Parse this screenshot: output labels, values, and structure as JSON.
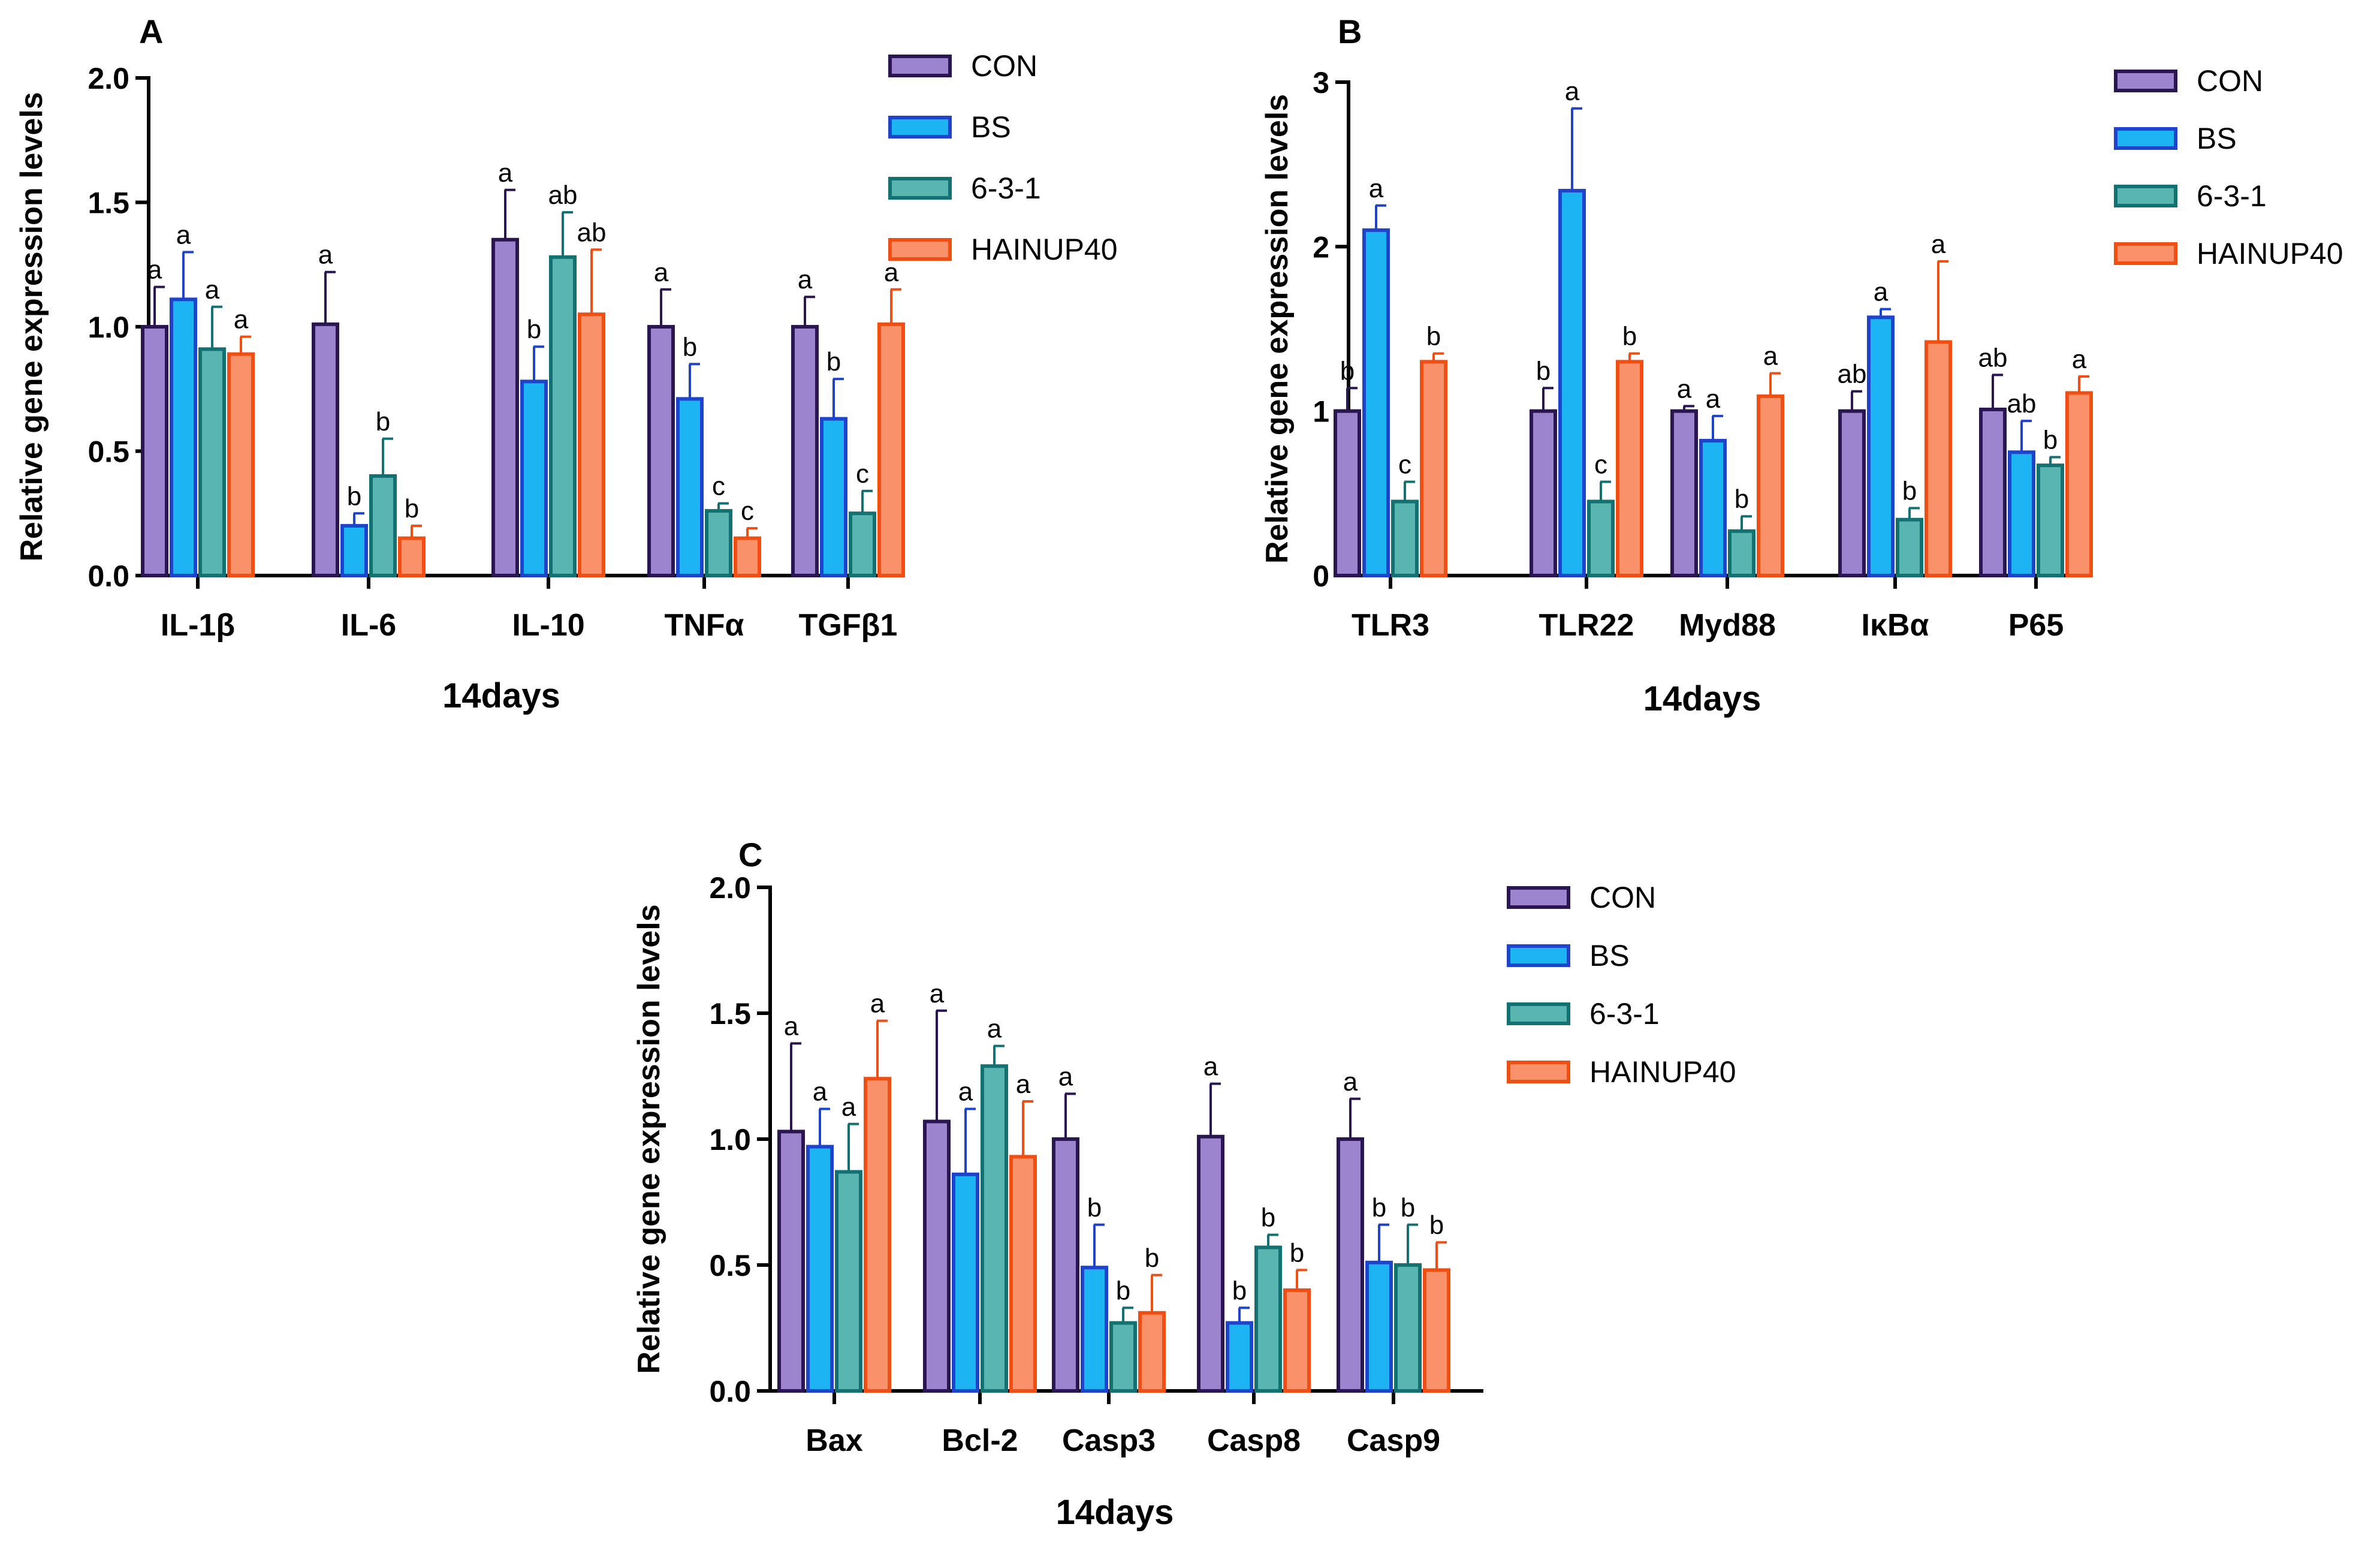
{
  "series_styles": [
    {
      "name": "CON",
      "fill": "#9C84CE",
      "stroke": "#2A1650"
    },
    {
      "name": "BS",
      "fill": "#1CB4F2",
      "stroke": "#1F44CC"
    },
    {
      "name": "6-3-1",
      "fill": "#58B5B0",
      "stroke": "#137171"
    },
    {
      "name": "HAINUP40",
      "fill": "#F9926A",
      "stroke": "#F04F14"
    }
  ],
  "chart_data": [
    {
      "type": "bar",
      "panel": "A",
      "xlabel": "14days",
      "ylabel": "Relative gene expression levels",
      "ylim": [
        0,
        2.0
      ],
      "yticks": [
        "0.0",
        "0.5",
        "1.0",
        "1.5",
        "2.0"
      ],
      "categories": [
        "IL-1β",
        "IL-6",
        "IL-10",
        "TNFα",
        "TGFβ1"
      ],
      "series": [
        {
          "name": "CON",
          "values": [
            1.0,
            1.01,
            1.35,
            1.0,
            1.0
          ],
          "errors": [
            0.16,
            0.21,
            0.2,
            0.15,
            0.12
          ],
          "letters": [
            "a",
            "a",
            "a",
            "a",
            "a"
          ]
        },
        {
          "name": "BS",
          "values": [
            1.11,
            0.2,
            0.78,
            0.71,
            0.63
          ],
          "errors": [
            0.19,
            0.05,
            0.14,
            0.14,
            0.16
          ],
          "letters": [
            "a",
            "b",
            "b",
            "b",
            "b"
          ]
        },
        {
          "name": "6-3-1",
          "values": [
            0.91,
            0.4,
            1.28,
            0.26,
            0.25
          ],
          "errors": [
            0.17,
            0.15,
            0.18,
            0.03,
            0.09
          ],
          "letters": [
            "a",
            "b",
            "ab",
            "c",
            "c"
          ]
        },
        {
          "name": "HAINUP40",
          "values": [
            0.89,
            0.15,
            1.05,
            0.15,
            1.01
          ],
          "errors": [
            0.07,
            0.05,
            0.26,
            0.04,
            0.14
          ],
          "letters": [
            "a",
            "b",
            "ab",
            "c",
            "a"
          ]
        }
      ],
      "legend": [
        "CON",
        "BS",
        "6-3-1",
        "HAINUP40"
      ]
    },
    {
      "type": "bar",
      "panel": "B",
      "xlabel": "14days",
      "ylabel": "Relative gene expression levels",
      "ylim": [
        0,
        3
      ],
      "yticks": [
        "0",
        "1",
        "2",
        "3"
      ],
      "categories": [
        "TLR3",
        "TLR22",
        "Myd88",
        "IκBα",
        "P65"
      ],
      "series": [
        {
          "name": "CON",
          "values": [
            1.0,
            1.0,
            1.0,
            1.0,
            1.01
          ],
          "errors": [
            0.14,
            0.14,
            0.03,
            0.12,
            0.21
          ],
          "letters": [
            "b",
            "b",
            "a",
            "ab",
            "ab"
          ]
        },
        {
          "name": "BS",
          "values": [
            2.1,
            2.34,
            0.82,
            1.57,
            0.75
          ],
          "errors": [
            0.15,
            0.5,
            0.15,
            0.05,
            0.19
          ],
          "letters": [
            "a",
            "a",
            "a",
            "a",
            "ab"
          ]
        },
        {
          "name": "6-3-1",
          "values": [
            0.45,
            0.45,
            0.27,
            0.34,
            0.67
          ],
          "errors": [
            0.12,
            0.12,
            0.09,
            0.07,
            0.05
          ],
          "letters": [
            "c",
            "c",
            "b",
            "b",
            "b"
          ]
        },
        {
          "name": "HAINUP40",
          "values": [
            1.3,
            1.3,
            1.09,
            1.42,
            1.11
          ],
          "errors": [
            0.05,
            0.05,
            0.14,
            0.49,
            0.1
          ],
          "letters": [
            "b",
            "b",
            "a",
            "a",
            "a"
          ]
        }
      ],
      "legend": [
        "CON",
        "BS",
        "6-3-1",
        "HAINUP40"
      ]
    },
    {
      "type": "bar",
      "panel": "C",
      "xlabel": "14days",
      "ylabel": "Relative gene expression levels",
      "ylim": [
        0,
        2.0
      ],
      "yticks": [
        "0.0",
        "0.5",
        "1.0",
        "1.5",
        "2.0"
      ],
      "categories": [
        "Bax",
        "Bcl-2",
        "Casp3",
        "Casp8",
        "Casp9"
      ],
      "series": [
        {
          "name": "CON",
          "values": [
            1.03,
            1.07,
            1.0,
            1.01,
            1.0
          ],
          "errors": [
            0.35,
            0.44,
            0.18,
            0.21,
            0.16
          ],
          "letters": [
            "a",
            "a",
            "a",
            "a",
            "a"
          ]
        },
        {
          "name": "BS",
          "values": [
            0.97,
            0.86,
            0.49,
            0.27,
            0.51
          ],
          "errors": [
            0.15,
            0.26,
            0.17,
            0.06,
            0.15
          ],
          "letters": [
            "a",
            "a",
            "b",
            "b",
            "b"
          ]
        },
        {
          "name": "6-3-1",
          "values": [
            0.87,
            1.29,
            0.27,
            0.57,
            0.5
          ],
          "errors": [
            0.19,
            0.08,
            0.06,
            0.05,
            0.16
          ],
          "letters": [
            "a",
            "a",
            "b",
            "b",
            "b"
          ]
        },
        {
          "name": "HAINUP40",
          "values": [
            1.24,
            0.93,
            0.31,
            0.4,
            0.48
          ],
          "errors": [
            0.23,
            0.22,
            0.15,
            0.08,
            0.11
          ],
          "letters": [
            "a",
            "a",
            "b",
            "b",
            "b"
          ]
        }
      ],
      "legend": [
        "CON",
        "BS",
        "6-3-1",
        "HAINUP40"
      ]
    }
  ]
}
